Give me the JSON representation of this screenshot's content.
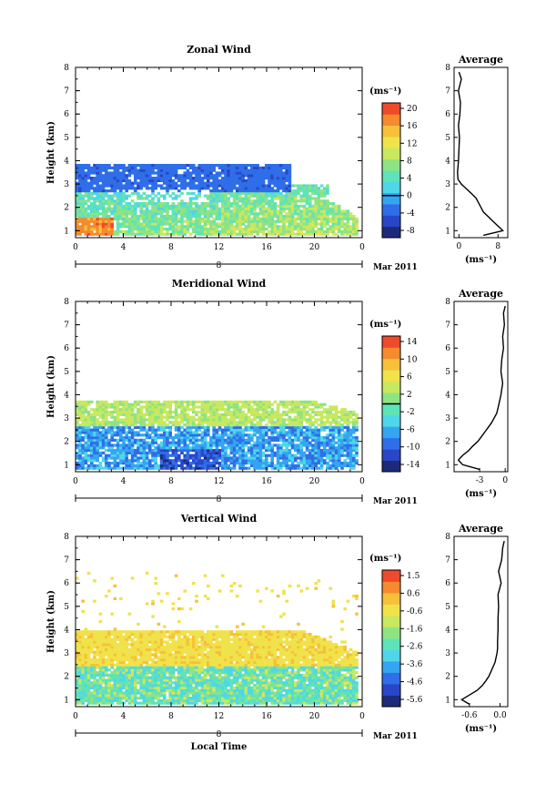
{
  "chart_data": [
    {
      "type": "heatmap",
      "title": "Zonal Wind",
      "ylabel": "Height (km)",
      "xlabel": "",
      "x_ticks": [
        "0",
        "4",
        "8",
        "12",
        "16",
        "20",
        "0"
      ],
      "y_ticks": [
        "1",
        "2",
        "3",
        "4",
        "5",
        "6",
        "7",
        "8"
      ],
      "xlim": [
        0,
        24
      ],
      "ylim": [
        0.7,
        8
      ],
      "date_day": "8",
      "date_label": "Mar 2011",
      "colorbar": {
        "unit": "(ms⁻¹)",
        "ticks": [
          "20",
          "16",
          "12",
          "8",
          "4",
          "0",
          "-4",
          "-8"
        ],
        "range": [
          -10,
          22
        ],
        "zero_line": 0
      },
      "profile": {
        "title": "Average",
        "x_ticks": [
          "0",
          "8"
        ],
        "xlim": [
          -1,
          10
        ],
        "xlabel": "(ms⁻¹)",
        "heights": [
          0.8,
          1.0,
          1.2,
          1.4,
          1.6,
          1.8,
          2.0,
          2.2,
          2.4,
          2.6,
          2.8,
          3.0,
          3.2,
          3.5,
          4.0,
          4.5,
          5.0,
          5.5,
          6.0,
          6.5,
          7.0,
          7.5,
          7.8
        ],
        "values": [
          5,
          9,
          8,
          7,
          6,
          5,
          4.5,
          4,
          3.5,
          2.5,
          1.5,
          0.5,
          -0.2,
          -0.3,
          -0.1,
          0,
          0.1,
          -0.1,
          0.2,
          0.3,
          -0.1,
          0.5,
          0
        ]
      }
    },
    {
      "type": "heatmap",
      "title": "Meridional Wind",
      "ylabel": "Height (km)",
      "xlabel": "",
      "x_ticks": [
        "0",
        "4",
        "8",
        "12",
        "16",
        "20",
        "0"
      ],
      "y_ticks": [
        "1",
        "2",
        "3",
        "4",
        "5",
        "6",
        "7",
        "8"
      ],
      "xlim": [
        0,
        24
      ],
      "ylim": [
        0.7,
        8
      ],
      "date_day": "8",
      "date_label": "Mar 2011",
      "colorbar": {
        "unit": "(ms⁻¹)",
        "ticks": [
          "14",
          "10",
          "6",
          "2",
          "-2",
          "-6",
          "-10",
          "-14"
        ],
        "range": [
          -16,
          16
        ],
        "zero_line": 0
      },
      "profile": {
        "title": "Average",
        "x_ticks": [
          "-3",
          "0"
        ],
        "xlim": [
          -6,
          0.3
        ],
        "xlabel": "(ms⁻¹)",
        "heights": [
          0.8,
          1.0,
          1.2,
          1.4,
          1.6,
          1.8,
          2.0,
          2.2,
          2.4,
          2.6,
          2.8,
          3.0,
          3.2,
          3.5,
          4.0,
          4.5,
          5.0,
          5.5,
          6.0,
          6.5,
          7.0,
          7.5,
          7.8
        ],
        "values": [
          -3,
          -5,
          -5.5,
          -5,
          -4.3,
          -3.8,
          -3.2,
          -2.8,
          -2.4,
          -2,
          -1.6,
          -1.3,
          -1,
          -0.8,
          -0.5,
          -0.3,
          -0.5,
          -0.4,
          -0.2,
          -0.3,
          -0.1,
          -0.2,
          0
        ]
      }
    },
    {
      "type": "heatmap",
      "title": "Vertical Wind",
      "ylabel": "Height (km)",
      "xlabel": "Local Time",
      "x_ticks": [
        "0",
        "4",
        "8",
        "12",
        "16",
        "20",
        "0"
      ],
      "y_ticks": [
        "1",
        "2",
        "3",
        "4",
        "5",
        "6",
        "7",
        "8"
      ],
      "xlim": [
        0,
        24
      ],
      "ylim": [
        0.7,
        8
      ],
      "date_day": "8",
      "date_label": "Mar 2011",
      "colorbar": {
        "unit": "(ms⁻¹)",
        "ticks": [
          "1.5",
          "0.6",
          "-0.6",
          "-1.6",
          "-2.6",
          "-3.6",
          "-4.6",
          "-5.6"
        ],
        "range": [
          -6,
          2
        ]
      },
      "profile": {
        "title": "Average",
        "x_ticks": [
          "-0.6",
          "0.0"
        ],
        "xlim": [
          -0.9,
          0.15
        ],
        "xlabel": "(ms⁻¹)",
        "heights": [
          0.8,
          1.0,
          1.2,
          1.4,
          1.6,
          1.8,
          2.0,
          2.2,
          2.4,
          2.6,
          2.8,
          3.0,
          3.2,
          3.5,
          4.0,
          4.5,
          5.0,
          5.5,
          6.0,
          6.5,
          7.0,
          7.5,
          7.8
        ],
        "values": [
          -0.6,
          -0.75,
          -0.6,
          -0.45,
          -0.35,
          -0.28,
          -0.22,
          -0.18,
          -0.14,
          -0.1,
          -0.08,
          -0.06,
          -0.05,
          -0.05,
          -0.04,
          -0.04,
          -0.03,
          -0.04,
          0.02,
          -0.03,
          0.03,
          0.05,
          0.08
        ]
      }
    }
  ]
}
